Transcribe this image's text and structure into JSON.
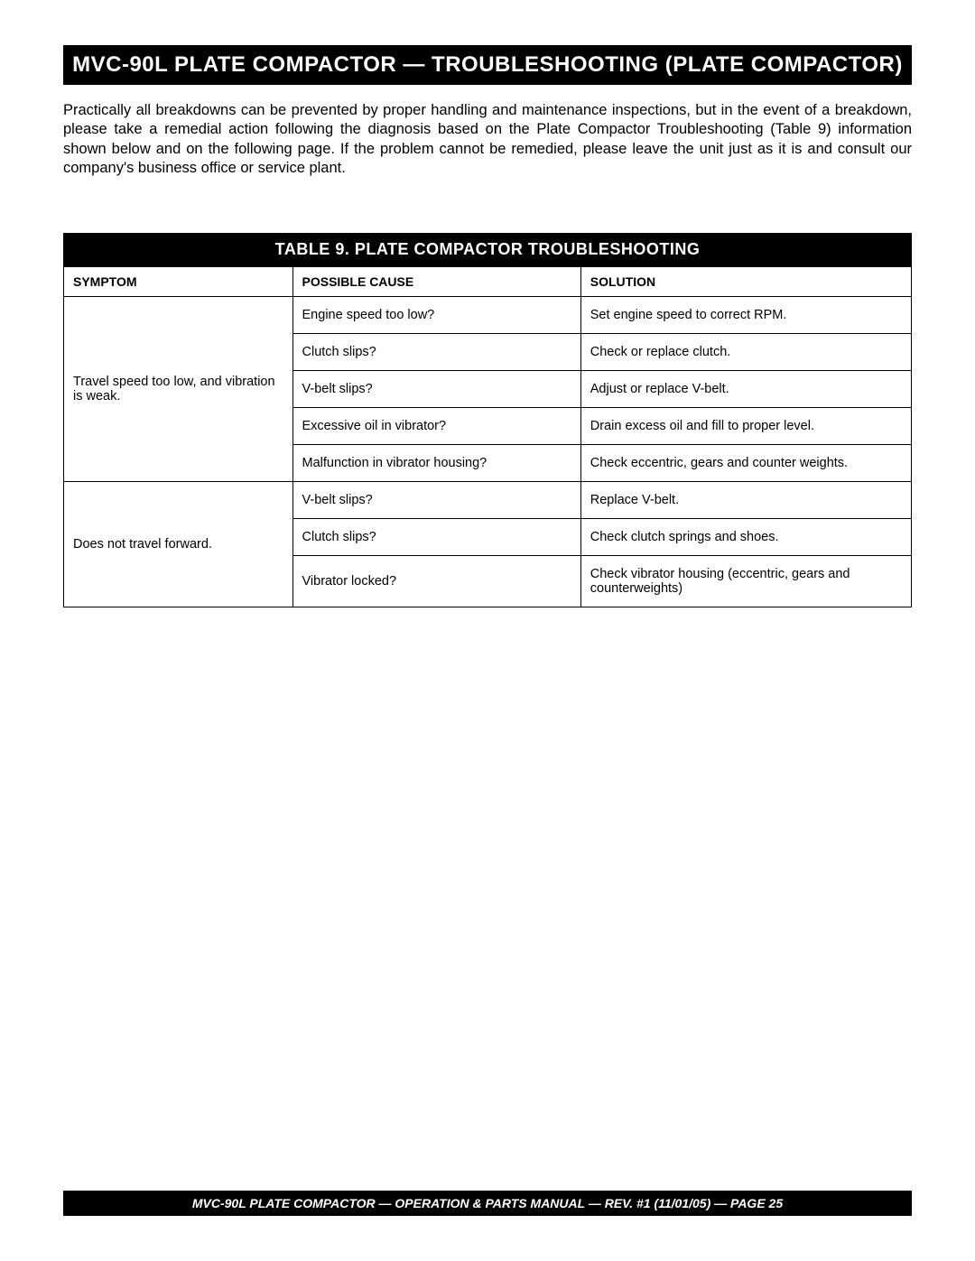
{
  "header": {
    "title": "MVC-90L PLATE COMPACTOR — TROUBLESHOOTING (PLATE COMPACTOR)"
  },
  "intro": {
    "text": "Practically all breakdowns can be prevented by proper handling and maintenance inspections, but in the event of a breakdown, please take a remedial action following the diagnosis based on the Plate Compactor Troubleshooting (Table 9) information shown below and on the following page. If the problem cannot be remedied, please leave the unit just as it is and consult our company's business office or service plant."
  },
  "table": {
    "title": "TABLE 9. PLATE COMPACTOR TROUBLESHOOTING",
    "columns": [
      "SYMPTOM",
      "POSSIBLE CAUSE",
      "SOLUTION"
    ],
    "groups": [
      {
        "symptom": "Travel speed too low, and vibration is weak.",
        "rows": [
          {
            "cause": "Engine speed too low?",
            "solution": "Set engine speed to correct RPM."
          },
          {
            "cause": "Clutch slips?",
            "solution": "Check or replace clutch."
          },
          {
            "cause": "V-belt slips?",
            "solution": "Adjust or replace V-belt."
          },
          {
            "cause": "Excessive oil in vibrator?",
            "solution": "Drain excess oil and fill to proper level."
          },
          {
            "cause": "Malfunction in vibrator housing?",
            "solution": "Check eccentric, gears and counter weights."
          }
        ]
      },
      {
        "symptom": "Does not travel  forward.",
        "rows": [
          {
            "cause": "V-belt slips?",
            "solution": "Replace V-belt."
          },
          {
            "cause": "Clutch slips?",
            "solution": "Check clutch springs and shoes."
          },
          {
            "cause": "Vibrator locked?",
            "solution": "Check vibrator housing (eccentric, gears and counterweights)"
          }
        ]
      }
    ]
  },
  "footer": {
    "text": "MVC-90L PLATE COMPACTOR —  OPERATION & PARTS MANUAL — REV. #1  (11/01/05) — PAGE 25"
  },
  "style": {
    "black": "#000000",
    "white": "#ffffff",
    "body_font_size": 16.5,
    "table_font_size": 14.5,
    "header_font_size": 24,
    "table_title_font_size": 18,
    "footer_font_size": 14
  }
}
